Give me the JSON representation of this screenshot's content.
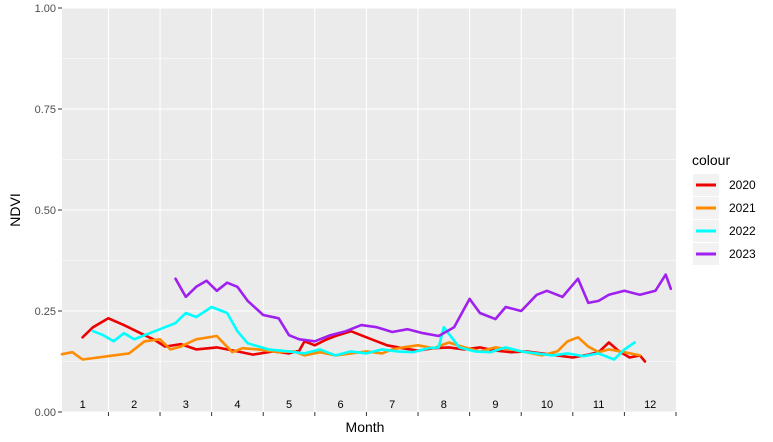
{
  "chart_data": {
    "type": "line",
    "xlabel": "Month",
    "ylabel": "NDVI",
    "ylim": [
      0,
      1
    ],
    "xlim": [
      0.6,
      12.5
    ],
    "yticks": [
      {
        "value": 0,
        "label": "0.00"
      },
      {
        "value": 0.25,
        "label": "0.25"
      },
      {
        "value": 0.5,
        "label": "0.50"
      },
      {
        "value": 0.75,
        "label": "0.75"
      },
      {
        "value": 1.0,
        "label": "1.00"
      }
    ],
    "month_labels": [
      "1",
      "2",
      "3",
      "4",
      "5",
      "6",
      "7",
      "8",
      "9",
      "10",
      "11",
      "12"
    ],
    "grid": true,
    "panel_background": "#ebebeb",
    "legend": {
      "title": "colour",
      "position": "right",
      "entries": [
        "2020",
        "2021",
        "2022",
        "2023"
      ]
    },
    "series": [
      {
        "name": "2020",
        "color": "#ee0000",
        "x": [
          1.0,
          1.2,
          1.5,
          1.8,
          2.2,
          2.4,
          2.6,
          2.9,
          3.2,
          3.6,
          4.0,
          4.3,
          4.7,
          5.0,
          5.2,
          5.3,
          5.5,
          5.7,
          5.9,
          6.2,
          6.5,
          6.7,
          6.9,
          7.2,
          7.5,
          7.8,
          8.1,
          8.4,
          8.7,
          9.0,
          9.3,
          9.6,
          9.9,
          10.2,
          10.5,
          10.8,
          11.0,
          11.2,
          11.4,
          11.6,
          11.8,
          11.9
        ],
        "y": [
          0.185,
          0.21,
          0.232,
          0.215,
          0.19,
          0.178,
          0.162,
          0.168,
          0.155,
          0.16,
          0.15,
          0.142,
          0.15,
          0.145,
          0.152,
          0.175,
          0.165,
          0.178,
          0.188,
          0.2,
          0.185,
          0.175,
          0.165,
          0.158,
          0.152,
          0.158,
          0.16,
          0.155,
          0.16,
          0.152,
          0.148,
          0.15,
          0.145,
          0.14,
          0.135,
          0.142,
          0.148,
          0.172,
          0.15,
          0.135,
          0.14,
          0.125
        ]
      },
      {
        "name": "2021",
        "color": "#ff8c00",
        "x": [
          0.6,
          0.8,
          1.0,
          1.3,
          1.6,
          1.9,
          2.2,
          2.5,
          2.7,
          2.9,
          3.2,
          3.6,
          3.9,
          4.1,
          4.4,
          4.8,
          5.1,
          5.3,
          5.6,
          5.9,
          6.2,
          6.5,
          6.8,
          7.0,
          7.2,
          7.5,
          7.8,
          8.1,
          8.4,
          8.7,
          9.0,
          9.3,
          9.6,
          9.9,
          10.2,
          10.4,
          10.6,
          10.8,
          11.0,
          11.2,
          11.5,
          11.8
        ],
        "y": [
          0.143,
          0.148,
          0.13,
          0.135,
          0.14,
          0.145,
          0.175,
          0.18,
          0.155,
          0.162,
          0.18,
          0.188,
          0.148,
          0.158,
          0.155,
          0.148,
          0.15,
          0.14,
          0.148,
          0.14,
          0.145,
          0.15,
          0.145,
          0.155,
          0.16,
          0.165,
          0.158,
          0.172,
          0.16,
          0.15,
          0.16,
          0.155,
          0.148,
          0.14,
          0.15,
          0.175,
          0.185,
          0.162,
          0.148,
          0.155,
          0.148,
          0.14
        ]
      },
      {
        "name": "2022",
        "color": "#00ffff",
        "x": [
          1.2,
          1.4,
          1.6,
          1.8,
          2.0,
          2.2,
          2.5,
          2.8,
          3.0,
          3.2,
          3.5,
          3.8,
          4.0,
          4.2,
          4.6,
          5.0,
          5.3,
          5.6,
          5.9,
          6.2,
          6.5,
          6.8,
          7.1,
          7.4,
          7.7,
          7.9,
          8.0,
          8.3,
          8.6,
          8.9,
          9.2,
          9.5,
          9.8,
          10.1,
          10.4,
          10.7,
          11.0,
          11.3,
          11.5,
          11.7
        ],
        "y": [
          0.2,
          0.19,
          0.175,
          0.195,
          0.18,
          0.19,
          0.205,
          0.22,
          0.245,
          0.235,
          0.26,
          0.245,
          0.2,
          0.17,
          0.155,
          0.15,
          0.145,
          0.155,
          0.14,
          0.15,
          0.145,
          0.155,
          0.15,
          0.148,
          0.158,
          0.16,
          0.21,
          0.16,
          0.15,
          0.148,
          0.16,
          0.15,
          0.145,
          0.14,
          0.145,
          0.138,
          0.145,
          0.13,
          0.155,
          0.172
        ]
      },
      {
        "name": "2023",
        "color": "#a020f0",
        "x": [
          2.8,
          3.0,
          3.2,
          3.4,
          3.6,
          3.8,
          4.0,
          4.2,
          4.5,
          4.8,
          5.0,
          5.2,
          5.5,
          5.8,
          6.1,
          6.4,
          6.7,
          7.0,
          7.3,
          7.6,
          7.9,
          8.2,
          8.5,
          8.7,
          9.0,
          9.2,
          9.5,
          9.8,
          10.0,
          10.3,
          10.6,
          10.8,
          11.0,
          11.2,
          11.5,
          11.8,
          12.1,
          12.3,
          12.4
        ],
        "y": [
          0.33,
          0.285,
          0.31,
          0.325,
          0.3,
          0.32,
          0.31,
          0.275,
          0.24,
          0.232,
          0.19,
          0.18,
          0.175,
          0.19,
          0.2,
          0.215,
          0.21,
          0.198,
          0.205,
          0.195,
          0.188,
          0.21,
          0.28,
          0.245,
          0.23,
          0.26,
          0.25,
          0.29,
          0.3,
          0.285,
          0.33,
          0.27,
          0.275,
          0.29,
          0.3,
          0.29,
          0.3,
          0.34,
          0.305
        ]
      }
    ]
  }
}
